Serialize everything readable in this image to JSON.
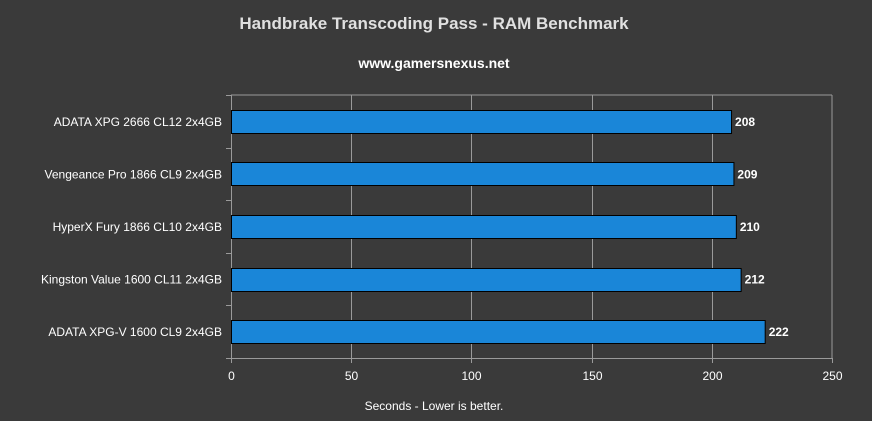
{
  "chart_data": {
    "type": "bar",
    "orientation": "horizontal",
    "title": "Handbrake Transcoding Pass - RAM Benchmark",
    "subtitle": "www.gamersnexus.net",
    "xlabel": "Seconds - Lower is better.",
    "ylabel": "",
    "categories": [
      "ADATA XPG 2666 CL12 2x4GB",
      "Vengeance Pro 1866 CL9 2x4GB",
      "HyperX Fury 1866 CL10 2x4GB",
      "Kingston Value 1600 CL11 2x4GB",
      "ADATA XPG-V 1600 CL9 2x4GB"
    ],
    "values": [
      208,
      209,
      210,
      212,
      222
    ],
    "xlim": [
      0,
      250
    ],
    "xticks": [
      0,
      50,
      100,
      150,
      200,
      250
    ],
    "grid": true,
    "legend": "none"
  },
  "colors": {
    "background": "#3a3a3a",
    "bar_fill": "#1a86d8",
    "bar_stroke": "#000000",
    "grid": "#9a9a9a",
    "axis": "#9a9a9a",
    "text": "#ffffff"
  }
}
